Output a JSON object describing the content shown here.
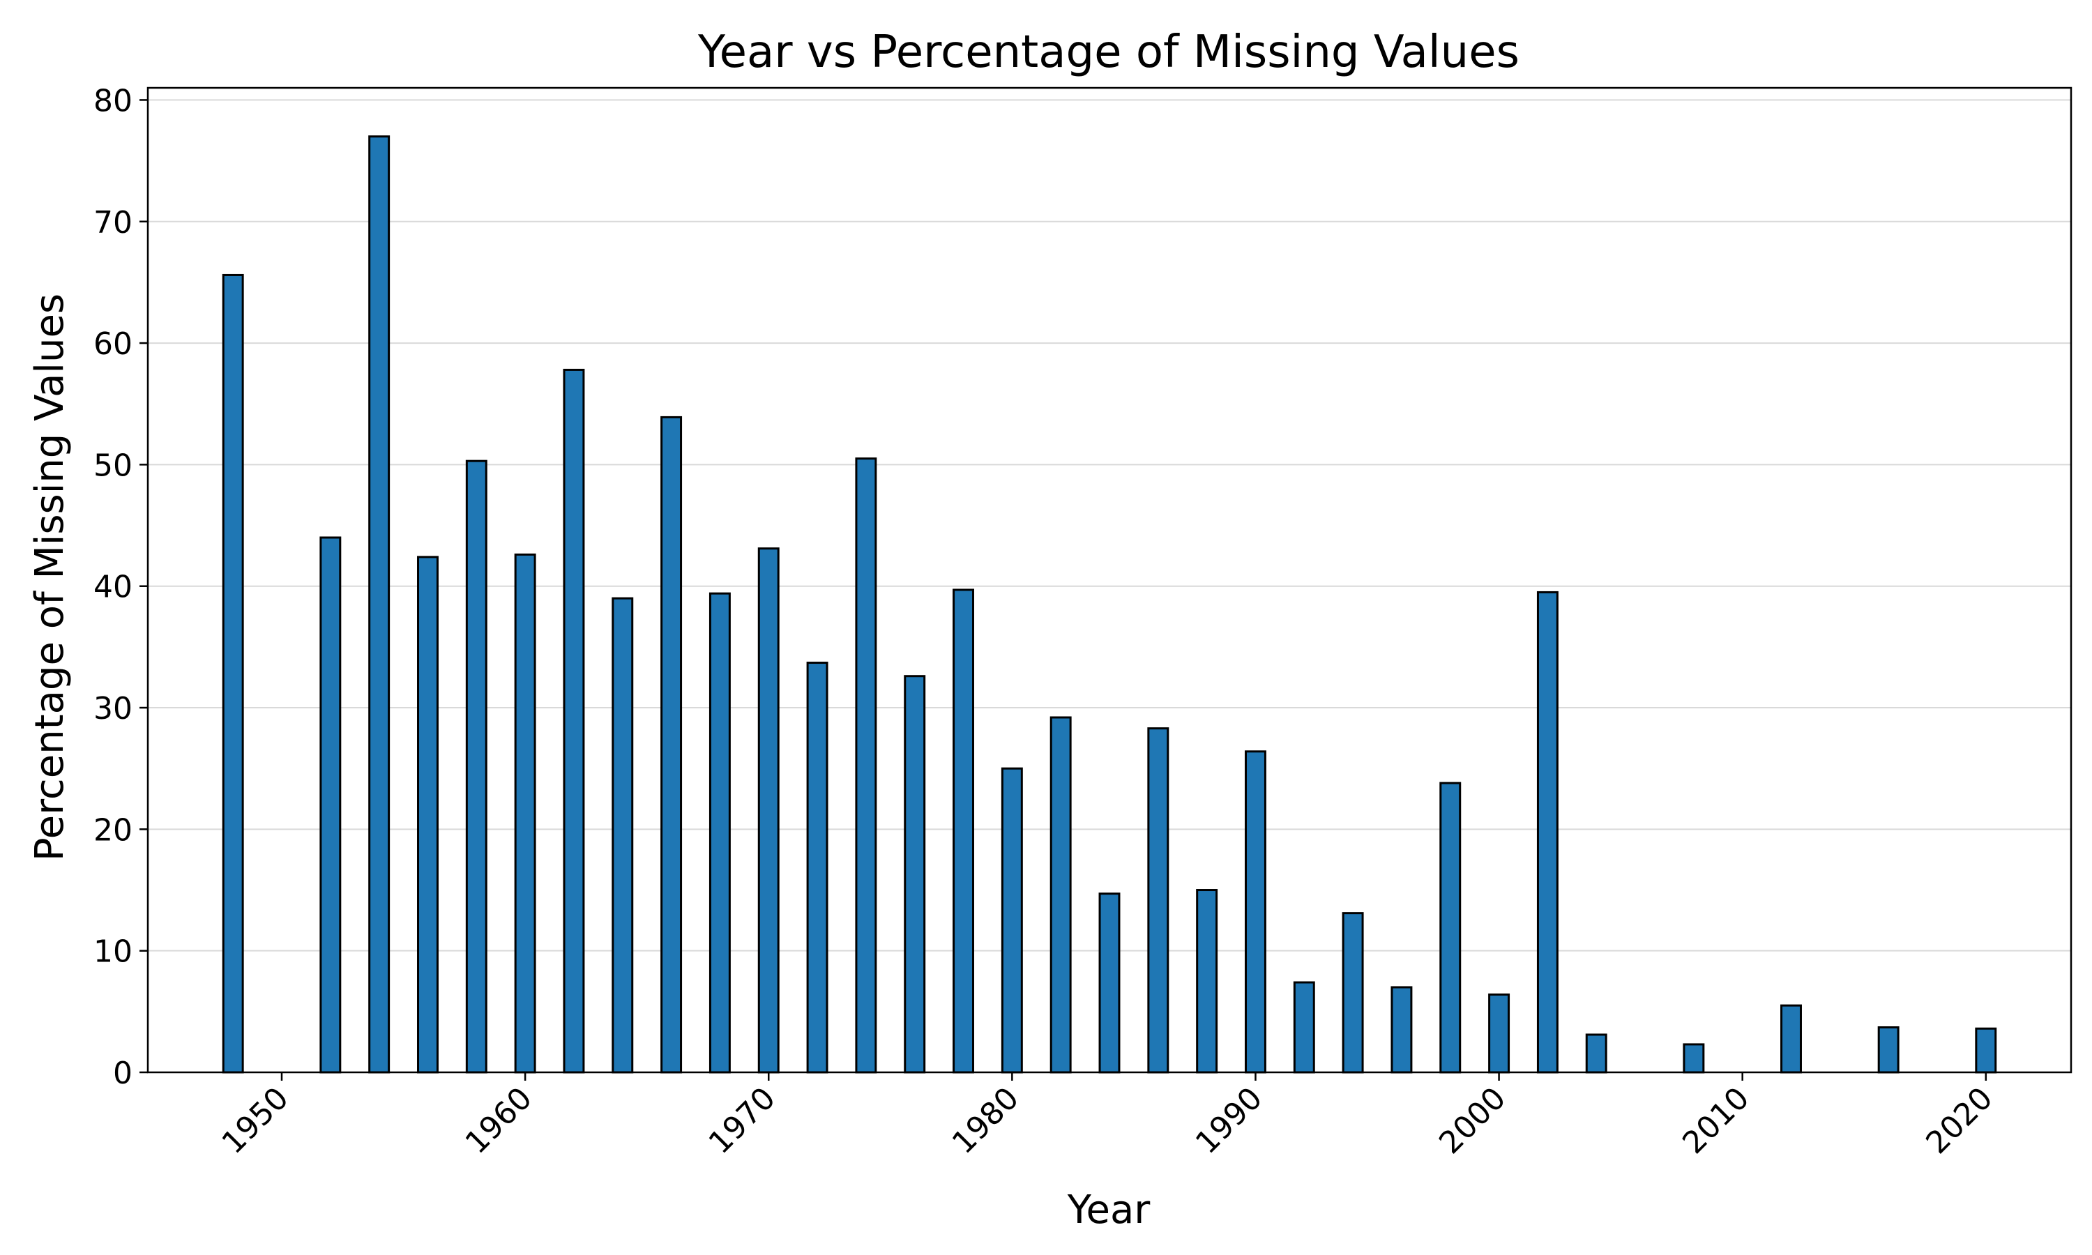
{
  "chart_data": {
    "type": "bar",
    "title": "Year vs Percentage of Missing Values",
    "xlabel": "Year",
    "ylabel": "Percentage of Missing Values",
    "xlim": [
      1944.5,
      2023.5
    ],
    "ylim": [
      0,
      81
    ],
    "x_ticks": [
      1950,
      1960,
      1970,
      1980,
      1990,
      2000,
      2010,
      2020
    ],
    "y_ticks": [
      0,
      10,
      20,
      30,
      40,
      50,
      60,
      70,
      80
    ],
    "x_tick_rotation": -45,
    "grid": "horizontal",
    "bar_width_years": 0.8,
    "bar_color": "#1f77b4",
    "bar_edge_color": "#000000",
    "grid_color": "#d9d9d9",
    "x": [
      1948,
      1952,
      1954,
      1956,
      1958,
      1960,
      1962,
      1964,
      1966,
      1968,
      1970,
      1972,
      1974,
      1976,
      1978,
      1980,
      1982,
      1984,
      1986,
      1988,
      1990,
      1992,
      1994,
      1996,
      1998,
      2000,
      2002,
      2004,
      2008,
      2012,
      2016,
      2020
    ],
    "values": [
      65.6,
      44.0,
      77.0,
      42.4,
      50.3,
      42.6,
      57.8,
      39.0,
      53.9,
      39.4,
      43.1,
      33.7,
      50.5,
      32.6,
      39.7,
      25.0,
      29.2,
      14.7,
      28.3,
      15.0,
      26.4,
      7.4,
      13.1,
      7.0,
      23.8,
      6.4,
      39.5,
      3.1,
      2.3,
      5.5,
      3.7,
      3.6
    ]
  }
}
